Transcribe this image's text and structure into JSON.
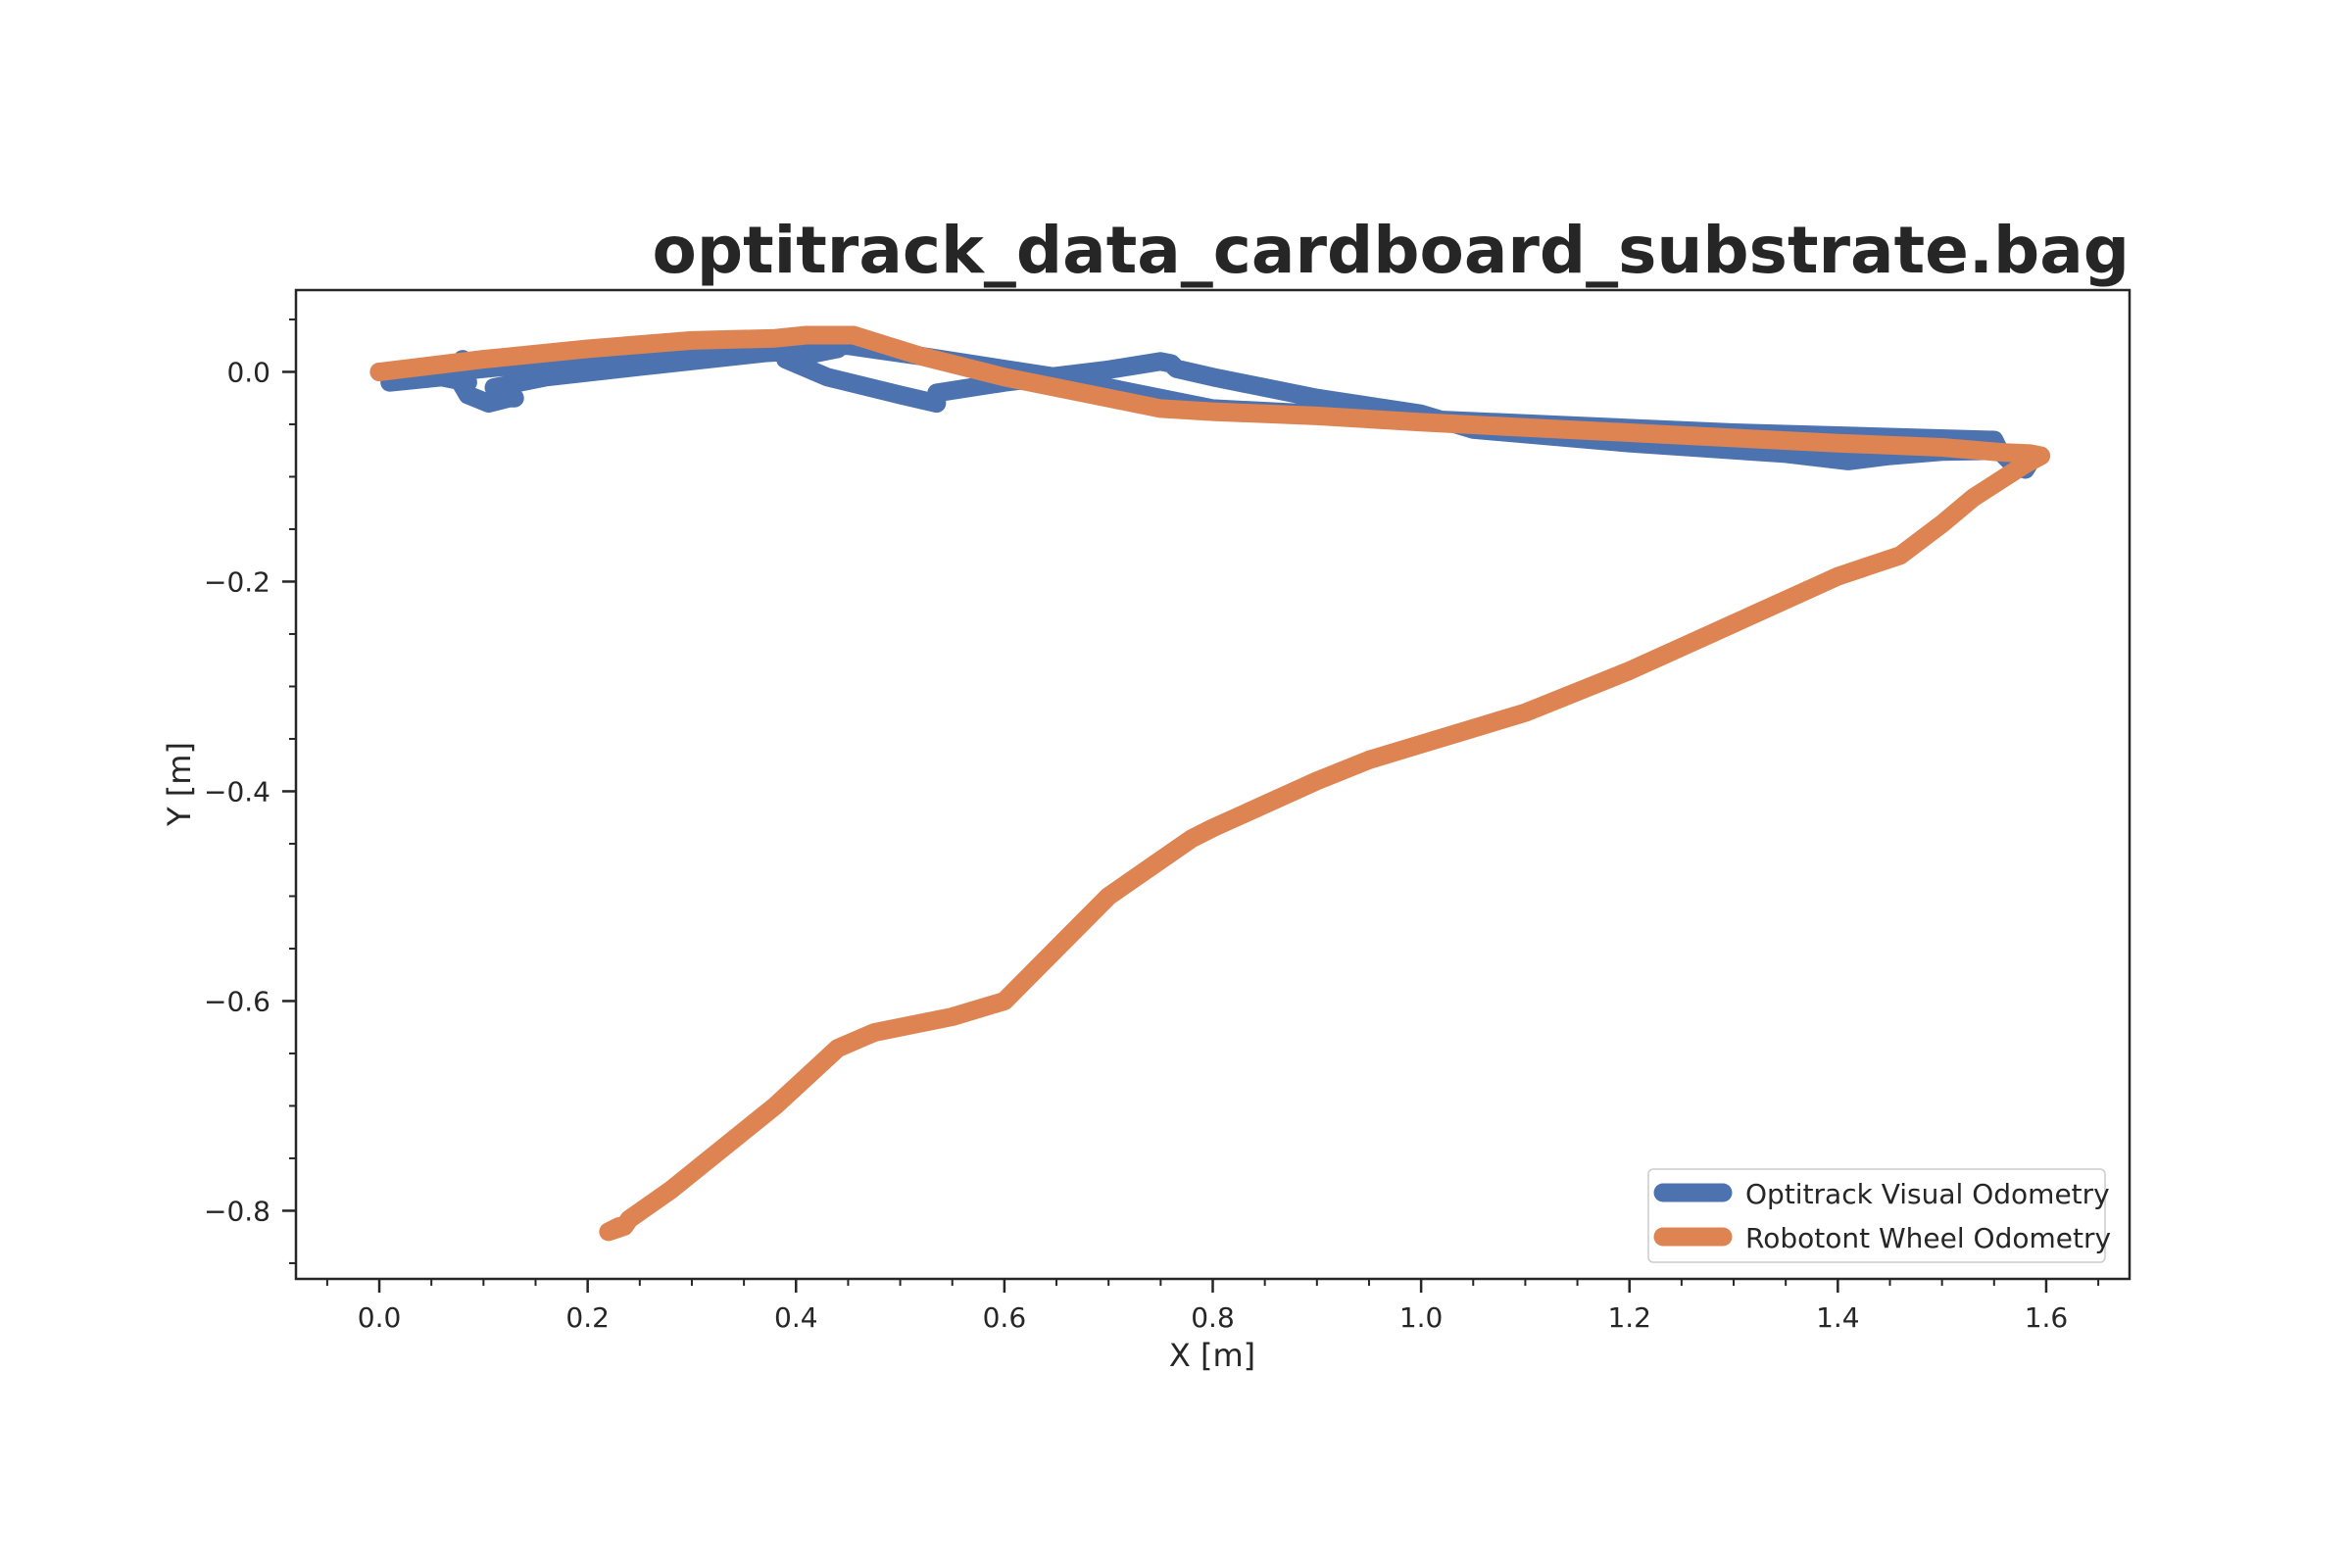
{
  "chart_data": {
    "type": "line",
    "title": "optitrack_data_cardboard_substrate.bag",
    "xlabel": "X [m]",
    "ylabel": "Y [m]",
    "xlim": [
      -0.08,
      1.68
    ],
    "ylim": [
      -0.865,
      0.078
    ],
    "x_ticks": [
      "0.0",
      "0.2",
      "0.4",
      "0.6",
      "0.8",
      "1.0",
      "1.2",
      "1.4",
      "1.6"
    ],
    "y_ticks": [
      "0.0",
      "−0.2",
      "−0.4",
      "−0.6",
      "−0.8"
    ],
    "grid": false,
    "legend_position": "lower-right",
    "series": [
      {
        "name": "Optitrack Visual Odometry",
        "color": "#4c72b0",
        "points": [
          [
            0.01,
            -0.01
          ],
          [
            0.03,
            -0.008
          ],
          [
            0.06,
            -0.005
          ],
          [
            0.085,
            -0.01
          ],
          [
            0.08,
            0.012
          ],
          [
            0.075,
            -0.005
          ],
          [
            0.085,
            -0.022
          ],
          [
            0.105,
            -0.03
          ],
          [
            0.125,
            -0.025
          ],
          [
            0.13,
            -0.025
          ],
          [
            0.11,
            -0.015
          ],
          [
            0.16,
            -0.005
          ],
          [
            0.25,
            0.005
          ],
          [
            0.37,
            0.018
          ],
          [
            0.44,
            0.022
          ],
          [
            0.39,
            0.012
          ],
          [
            0.43,
            -0.005
          ],
          [
            0.5,
            -0.022
          ],
          [
            0.535,
            -0.03
          ],
          [
            0.535,
            -0.02
          ],
          [
            0.6,
            -0.01
          ],
          [
            0.7,
            0.002
          ],
          [
            0.75,
            0.01
          ],
          [
            0.76,
            0.008
          ],
          [
            0.765,
            0.003
          ],
          [
            0.8,
            -0.005
          ],
          [
            0.9,
            -0.025
          ],
          [
            1.0,
            -0.04
          ],
          [
            1.05,
            -0.055
          ],
          [
            1.2,
            -0.068
          ],
          [
            1.35,
            -0.078
          ],
          [
            1.41,
            -0.085
          ],
          [
            1.45,
            -0.08
          ],
          [
            1.5,
            -0.076
          ],
          [
            1.555,
            -0.075
          ],
          [
            1.57,
            -0.09
          ],
          [
            1.58,
            -0.093
          ],
          [
            1.585,
            -0.085
          ],
          [
            1.57,
            -0.085
          ],
          [
            1.555,
            -0.075
          ],
          [
            1.55,
            -0.065
          ],
          [
            1.3,
            -0.058
          ],
          [
            1.0,
            -0.045
          ],
          [
            0.8,
            -0.035
          ],
          [
            0.65,
            -0.005
          ],
          [
            0.52,
            0.015
          ],
          [
            0.45,
            0.025
          ],
          [
            0.35,
            0.025
          ],
          [
            0.25,
            0.018
          ],
          [
            0.15,
            0.008
          ],
          [
            0.05,
            -0.002
          ],
          [
            0.0,
            0.0
          ]
        ]
      },
      {
        "name": "Robotont Wheel Odometry",
        "color": "#dd8452",
        "points": [
          [
            0.0,
            0.0
          ],
          [
            0.1,
            0.012
          ],
          [
            0.2,
            0.022
          ],
          [
            0.3,
            0.03
          ],
          [
            0.38,
            0.032
          ],
          [
            0.41,
            0.035
          ],
          [
            0.455,
            0.035
          ],
          [
            0.52,
            0.015
          ],
          [
            0.6,
            -0.005
          ],
          [
            0.7,
            -0.025
          ],
          [
            0.75,
            -0.035
          ],
          [
            0.8,
            -0.038
          ],
          [
            0.9,
            -0.042
          ],
          [
            1.0,
            -0.048
          ],
          [
            1.1,
            -0.053
          ],
          [
            1.2,
            -0.058
          ],
          [
            1.3,
            -0.063
          ],
          [
            1.4,
            -0.068
          ],
          [
            1.5,
            -0.072
          ],
          [
            1.56,
            -0.077
          ],
          [
            1.585,
            -0.078
          ],
          [
            1.595,
            -0.08
          ],
          [
            1.58,
            -0.088
          ],
          [
            1.53,
            -0.12
          ],
          [
            1.5,
            -0.145
          ],
          [
            1.46,
            -0.175
          ],
          [
            1.43,
            -0.185
          ],
          [
            1.4,
            -0.195
          ],
          [
            1.3,
            -0.24
          ],
          [
            1.2,
            -0.285
          ],
          [
            1.1,
            -0.325
          ],
          [
            1.0,
            -0.355
          ],
          [
            0.95,
            -0.37
          ],
          [
            0.9,
            -0.39
          ],
          [
            0.8,
            -0.435
          ],
          [
            0.78,
            -0.445
          ],
          [
            0.7,
            -0.5
          ],
          [
            0.65,
            -0.55
          ],
          [
            0.6,
            -0.6
          ],
          [
            0.55,
            -0.615
          ],
          [
            0.475,
            -0.63
          ],
          [
            0.44,
            -0.645
          ],
          [
            0.38,
            -0.7
          ],
          [
            0.28,
            -0.78
          ],
          [
            0.24,
            -0.808
          ],
          [
            0.235,
            -0.815
          ],
          [
            0.22,
            -0.82
          ],
          [
            0.23,
            -0.815
          ]
        ]
      }
    ]
  }
}
